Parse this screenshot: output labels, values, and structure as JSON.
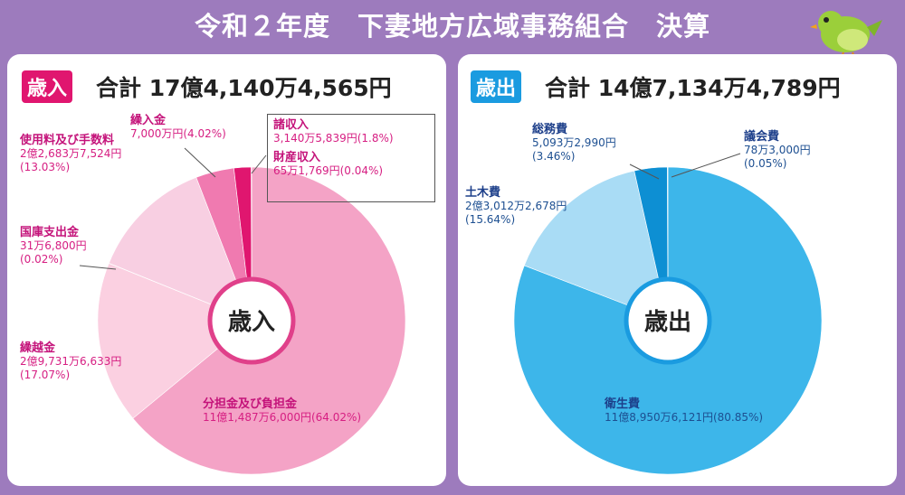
{
  "title": "令和２年度　下妻地方広域事務組合　決算",
  "revenue": {
    "badge": "歳入",
    "total": "合計 17億4,140万4,565円",
    "center": "歳入",
    "colors": [
      "#f4a3c6",
      "#fbd0e1",
      "#fbdaea",
      "#f8cfe2",
      "#f07ab0",
      "#e0166f",
      "#d2005a"
    ]
  },
  "expenditure": {
    "badge": "歳出",
    "total": "合計 14億7,134万4,789円",
    "center": "歳出",
    "colors": [
      "#3db6ea",
      "#a9dcf5",
      "#0d8fd3",
      "#7fc9ee"
    ]
  },
  "chart_data": [
    {
      "type": "pie",
      "name": "歳入",
      "slices": [
        {
          "label": "分担金及び負担金",
          "amount": "11億1,487万6,000円",
          "percent": 64.02
        },
        {
          "label": "繰越金",
          "amount": "2億9,731万6,633円",
          "percent": 17.07
        },
        {
          "label": "国庫支出金",
          "amount": "31万6,800円",
          "percent": 0.02
        },
        {
          "label": "使用料及び手数料",
          "amount": "2億2,683万7,524円",
          "percent": 13.03
        },
        {
          "label": "繰入金",
          "amount": "7,000万円",
          "percent": 4.02
        },
        {
          "label": "諸収入",
          "amount": "3,140万5,839円",
          "percent": 1.8
        },
        {
          "label": "財産収入",
          "amount": "65万1,769円",
          "percent": 0.04
        }
      ]
    },
    {
      "type": "pie",
      "name": "歳出",
      "slices": [
        {
          "label": "衛生費",
          "amount": "11億8,950万6,121円",
          "percent": 80.85
        },
        {
          "label": "土木費",
          "amount": "2億3,012万2,678円",
          "percent": 15.64
        },
        {
          "label": "総務費",
          "amount": "5,093万2,990円",
          "percent": 3.46
        },
        {
          "label": "議会費",
          "amount": "78万3,000円",
          "percent": 0.05
        }
      ]
    }
  ],
  "labels": {
    "rev": [
      {
        "name": "繰入金",
        "amount": "7,000万円(4.02%)"
      },
      {
        "name": "使用料及び手数料",
        "amount": "2億2,683万7,524円",
        "pct": "(13.03%)"
      },
      {
        "name": "国庫支出金",
        "amount": "31万6,800円",
        "pct": "(0.02%)"
      },
      {
        "name": "繰越金",
        "amount": "2億9,731万6,633円",
        "pct": "(17.07%)"
      },
      {
        "name": "分担金及び負担金",
        "amount": "11億1,487万6,000円(64.02%)"
      },
      {
        "name": "諸収入",
        "amount": "3,140万5,839円(1.8%)"
      },
      {
        "name": "財産収入",
        "amount": "65万1,769円(0.04%)"
      }
    ],
    "exp": [
      {
        "name": "総務費",
        "amount": "5,093万2,990円",
        "pct": "(3.46%)"
      },
      {
        "name": "議会費",
        "amount": "78万3,000円",
        "pct": "(0.05%)"
      },
      {
        "name": "土木費",
        "amount": "2億3,012万2,678円",
        "pct": "(15.64%)"
      },
      {
        "name": "衛生費",
        "amount": "11億8,950万6,121円(80.85%)"
      }
    ]
  }
}
